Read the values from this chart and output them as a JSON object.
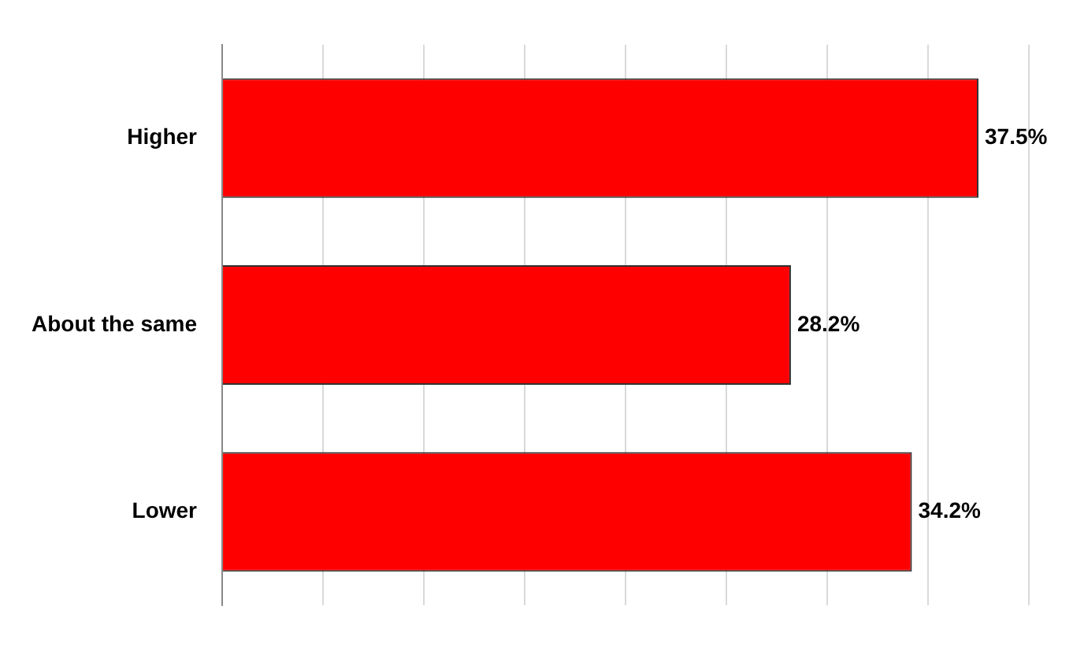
{
  "chart_data": {
    "type": "bar",
    "orientation": "horizontal",
    "categories": [
      "Higher",
      "About the same",
      "Lower"
    ],
    "values": [
      37.5,
      28.2,
      34.2
    ],
    "value_labels": [
      "37.5%",
      "28.2%",
      "34.2%"
    ],
    "color": "#ff0000",
    "grid": "x",
    "tick_labels": "y"
  }
}
